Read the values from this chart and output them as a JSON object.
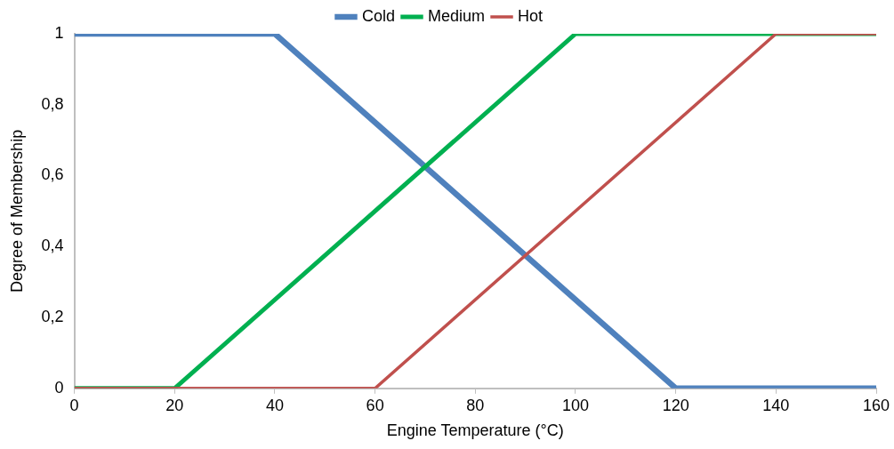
{
  "chart_data": {
    "type": "line",
    "xlabel": "Engine Temperature (°C)",
    "ylabel": "Degree of Membership",
    "series": [
      {
        "name": "Cold",
        "color": "#4f81bd",
        "x": [
          0,
          40,
          120,
          160
        ],
        "values": [
          1,
          1,
          0,
          0
        ]
      },
      {
        "name": "Medium",
        "color": "#00b050",
        "x": [
          0,
          20,
          100,
          160
        ],
        "values": [
          0,
          0,
          1,
          1
        ]
      },
      {
        "name": "Hot",
        "color": "#c0504d",
        "x": [
          0,
          60,
          140,
          160
        ],
        "values": [
          0,
          0,
          1,
          1
        ]
      }
    ],
    "xlim": [
      0,
      160
    ],
    "xticks": [
      0,
      20,
      40,
      60,
      80,
      100,
      120,
      140,
      160
    ],
    "ylim": [
      0,
      1
    ],
    "yticks": [
      0,
      {
        "value": 0.2,
        "label": "0,2"
      },
      {
        "value": 0.4,
        "label": "0,4"
      },
      {
        "value": 0.6,
        "label": "0,6"
      },
      {
        "value": 0.8,
        "label": "0,8"
      },
      1
    ],
    "grid": false,
    "legend": "top",
    "marker": "none",
    "line_style": "solid"
  }
}
